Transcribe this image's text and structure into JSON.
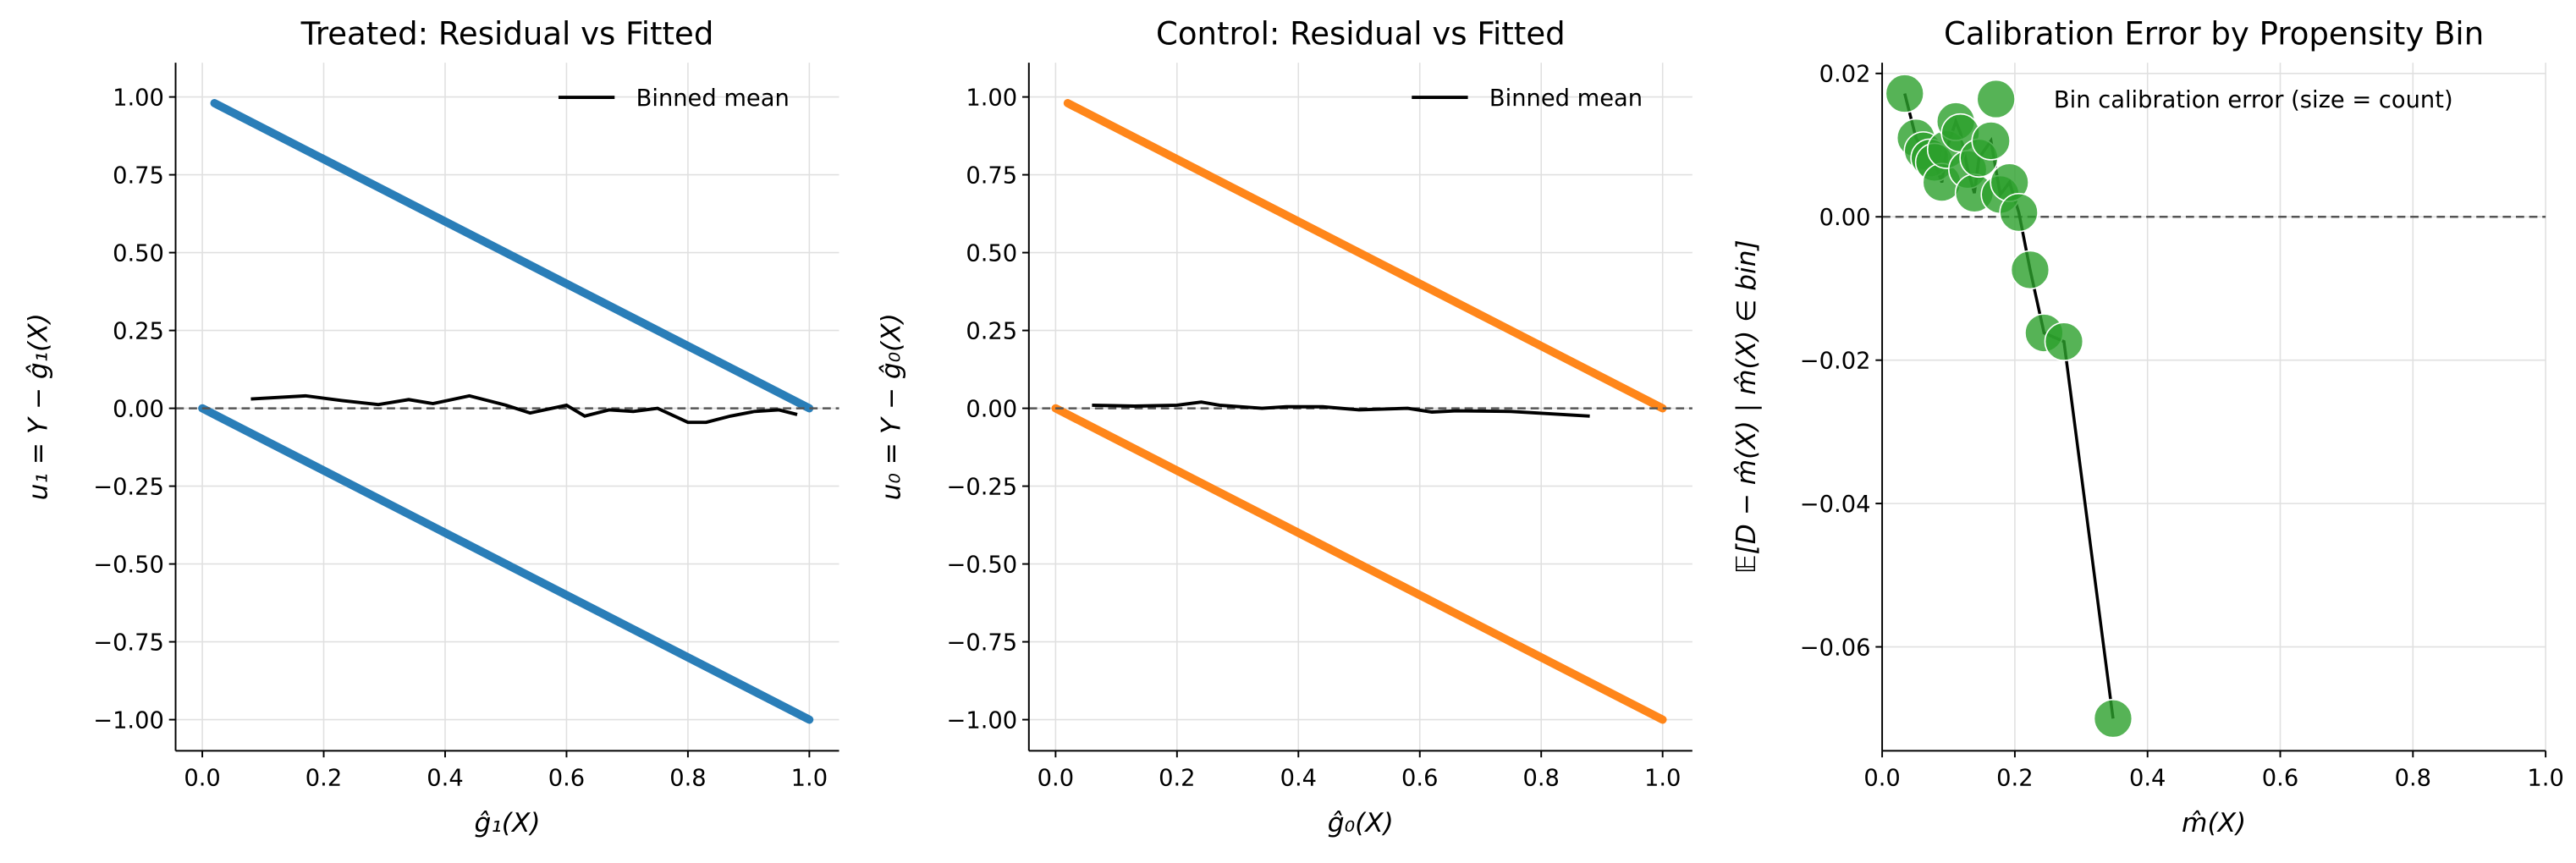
{
  "colors": {
    "treated": "#1f77b4",
    "control": "#ff7f0e",
    "calibration": "#2ca02c",
    "binned_mean": "#000000",
    "reference": "#555555",
    "grid": "#e0e0e0"
  },
  "chart_data": [
    {
      "type": "scatter",
      "title": "Treated: Residual vs Fitted",
      "xlabel": "ĝ₁(X)",
      "ylabel": "u₁ = Y − ĝ₁(X)",
      "xlim": [
        -0.044,
        1.049
      ],
      "ylim": [
        -1.1,
        1.11
      ],
      "xticks": [
        0.0,
        0.2,
        0.4,
        0.6,
        0.8,
        1.0
      ],
      "xtick_labels": [
        "0.0",
        "0.2",
        "0.4",
        "0.6",
        "0.8",
        "1.0"
      ],
      "yticks": [
        1.0,
        0.75,
        0.5,
        0.25,
        0.0,
        -0.25,
        -0.5,
        -0.75,
        -1.0
      ],
      "ytick_labels": [
        "1.00",
        "0.75",
        "0.50",
        "0.25",
        "0.00",
        "−0.25",
        "−0.50",
        "−0.75",
        "−1.00"
      ],
      "grid": true,
      "legend": {
        "placement": "top-right",
        "entries": [
          "Binned mean"
        ]
      },
      "residual_bands": [
        {
          "description": "Y=1",
          "x": [
            0.02,
            1.0
          ],
          "y": [
            0.98,
            0.0
          ]
        },
        {
          "description": "Y=0",
          "x": [
            0.0,
            1.0
          ],
          "y": [
            0.0,
            -1.0
          ]
        }
      ],
      "binned_mean": {
        "x": [
          0.08,
          0.17,
          0.23,
          0.29,
          0.34,
          0.38,
          0.44,
          0.5,
          0.54,
          0.6,
          0.63,
          0.67,
          0.71,
          0.75,
          0.8,
          0.83,
          0.87,
          0.91,
          0.95,
          0.98
        ],
        "y": [
          0.03,
          0.04,
          0.025,
          0.012,
          0.028,
          0.015,
          0.04,
          0.01,
          -0.015,
          0.01,
          -0.025,
          -0.005,
          -0.01,
          0.0,
          -0.045,
          -0.045,
          -0.025,
          -0.01,
          -0.005,
          -0.02
        ]
      },
      "reference_line_y": 0
    },
    {
      "type": "scatter",
      "title": "Control: Residual vs Fitted",
      "xlabel": "ĝ₀(X)",
      "ylabel": "u₀ = Y − ĝ₀(X)",
      "xlim": [
        -0.044,
        1.049
      ],
      "ylim": [
        -1.1,
        1.11
      ],
      "xticks": [
        0.0,
        0.2,
        0.4,
        0.6,
        0.8,
        1.0
      ],
      "xtick_labels": [
        "0.0",
        "0.2",
        "0.4",
        "0.6",
        "0.8",
        "1.0"
      ],
      "yticks": [
        1.0,
        0.75,
        0.5,
        0.25,
        0.0,
        -0.25,
        -0.5,
        -0.75,
        -1.0
      ],
      "ytick_labels": [
        "1.00",
        "0.75",
        "0.50",
        "0.25",
        "0.00",
        "−0.25",
        "−0.50",
        "−0.75",
        "−1.00"
      ],
      "grid": true,
      "legend": {
        "placement": "top-right",
        "entries": [
          "Binned mean"
        ]
      },
      "residual_bands": [
        {
          "description": "Y=1",
          "x": [
            0.02,
            1.0
          ],
          "y": [
            0.98,
            0.0
          ]
        },
        {
          "description": "Y=0",
          "x": [
            0.0,
            1.0
          ],
          "y": [
            0.0,
            -1.0
          ]
        }
      ],
      "binned_mean": {
        "x": [
          0.06,
          0.13,
          0.2,
          0.24,
          0.27,
          0.34,
          0.38,
          0.44,
          0.5,
          0.58,
          0.62,
          0.66,
          0.75,
          0.88
        ],
        "y": [
          0.01,
          0.007,
          0.01,
          0.02,
          0.01,
          0.0,
          0.005,
          0.005,
          -0.005,
          0.0,
          -0.012,
          -0.008,
          -0.01,
          -0.025
        ]
      },
      "reference_line_y": 0
    },
    {
      "type": "scatter",
      "title": "Calibration Error by Propensity Bin",
      "xlabel": "m̂(X)",
      "ylabel": "𝔼[D − m̂(X) | m̂(X) ∈ bin]",
      "xlim": [
        0.0,
        1.0
      ],
      "ylim": [
        -0.0745,
        0.0215
      ],
      "xticks": [
        0.0,
        0.2,
        0.4,
        0.6,
        0.8,
        1.0
      ],
      "xtick_labels": [
        "0.0",
        "0.2",
        "0.4",
        "0.6",
        "0.8",
        "1.0"
      ],
      "yticks": [
        0.02,
        0.0,
        -0.02,
        -0.04,
        -0.06
      ],
      "ytick_labels": [
        "0.02",
        "0.00",
        "−0.02",
        "−0.04",
        "−0.06"
      ],
      "grid": true,
      "legend": {
        "placement": "top-right",
        "entries": [
          "Bin calibration error (size = count)"
        ]
      },
      "points": {
        "x": [
          0.034,
          0.051,
          0.062,
          0.072,
          0.079,
          0.09,
          0.097,
          0.111,
          0.118,
          0.129,
          0.139,
          0.146,
          0.164,
          0.178,
          0.192,
          0.206,
          0.223,
          0.244,
          0.274,
          0.348
        ],
        "y": [
          0.0172,
          0.011,
          0.0092,
          0.0082,
          0.0076,
          0.0048,
          0.0094,
          0.0133,
          0.0117,
          0.0066,
          0.0033,
          0.0082,
          0.0106,
          0.0031,
          0.0048,
          0.0006,
          -0.0074,
          -0.0162,
          -0.0174,
          -0.07
        ]
      },
      "reference_line_y": 0
    }
  ]
}
